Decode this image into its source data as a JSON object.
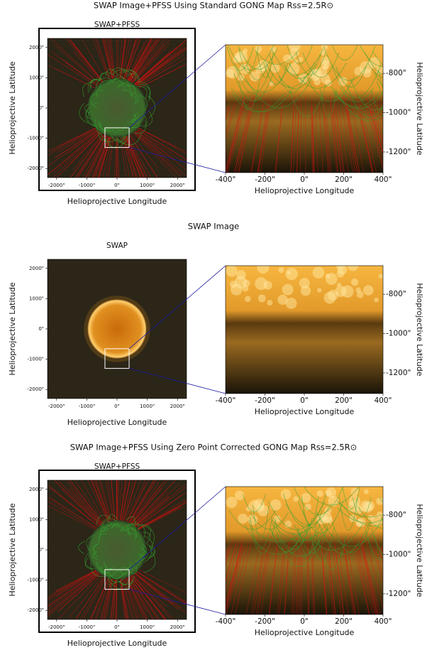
{
  "rows": [
    {
      "title": "SWAP Image+PFSS Using Standard GONG Map Rss=2.5R⊙",
      "pfss_lines": true,
      "overview": {
        "title": "SWAP+PFSS",
        "xlabel": "Helioprojective Longitude",
        "ylabel": "Helioprojective Latitude",
        "xlim": [
          -2300,
          2300
        ],
        "ylim": [
          -2300,
          2300
        ],
        "xticks": [
          {
            "value": -2000,
            "label": "-2000\""
          },
          {
            "value": -1000,
            "label": "-1000\""
          },
          {
            "value": 0,
            "label": "0\""
          },
          {
            "value": 1000,
            "label": "1000\""
          },
          {
            "value": 2000,
            "label": "2000\""
          }
        ],
        "yticks": [
          {
            "value": 2000,
            "label": "2000\""
          },
          {
            "value": 1000,
            "label": "1000\""
          },
          {
            "value": 0,
            "label": "0\""
          },
          {
            "value": -1000,
            "label": "-1000\""
          },
          {
            "value": -2000,
            "label": "-2000\""
          }
        ]
      },
      "zoom": {
        "xlabel": "Helioprojective Longitude",
        "ylabel": "Helioprojective Latitude",
        "xlim": [
          -400,
          400
        ],
        "ylim": [
          -1305,
          -655
        ],
        "xticks": [
          {
            "value": -400,
            "label": "-400\""
          },
          {
            "value": -200,
            "label": "-200\""
          },
          {
            "value": 0,
            "label": "0\""
          },
          {
            "value": 200,
            "label": "200\""
          },
          {
            "value": 400,
            "label": "400\""
          }
        ],
        "yticks": [
          {
            "value": -800,
            "label": "-800\""
          },
          {
            "value": -1000,
            "label": "-1000\""
          },
          {
            "value": -1200,
            "label": "-1200\""
          }
        ]
      }
    },
    {
      "title": "SWAP Image",
      "pfss_lines": false,
      "overview": {
        "title": "SWAP",
        "xlabel": "Helioprojective Longitude",
        "ylabel": "Helioprojective Latitude",
        "xlim": [
          -2300,
          2300
        ],
        "ylim": [
          -2300,
          2300
        ],
        "xticks": [
          {
            "value": -2000,
            "label": "-2000\""
          },
          {
            "value": -1000,
            "label": "-1000\""
          },
          {
            "value": 0,
            "label": "0\""
          },
          {
            "value": 1000,
            "label": "1000\""
          },
          {
            "value": 2000,
            "label": "2000\""
          }
        ],
        "yticks": [
          {
            "value": 2000,
            "label": "2000\""
          },
          {
            "value": 1000,
            "label": "1000\""
          },
          {
            "value": 0,
            "label": "0\""
          },
          {
            "value": -1000,
            "label": "-1000\""
          },
          {
            "value": -2000,
            "label": "-2000\""
          }
        ]
      },
      "zoom": {
        "xlabel": "Helioprojective Longitude",
        "ylabel": "Helioprojective Latitude",
        "xlim": [
          -400,
          400
        ],
        "ylim": [
          -1305,
          -655
        ],
        "xticks": [
          {
            "value": -400,
            "label": "-400\""
          },
          {
            "value": -200,
            "label": "-200\""
          },
          {
            "value": 0,
            "label": "0\""
          },
          {
            "value": 200,
            "label": "200\""
          },
          {
            "value": 400,
            "label": "400\""
          }
        ],
        "yticks": [
          {
            "value": -800,
            "label": "-800\""
          },
          {
            "value": -1000,
            "label": "-1000\""
          },
          {
            "value": -1200,
            "label": "-1200\""
          }
        ]
      }
    },
    {
      "title": "SWAP Image+PFSS Using Zero Point Corrected GONG Map Rss=2.5R⊙",
      "pfss_lines": true,
      "overview": {
        "title": "SWAP+PFSS",
        "xlabel": "Helioprojective Longitude",
        "ylabel": "Helioprojective Latitude",
        "xlim": [
          -2300,
          2300
        ],
        "ylim": [
          -2300,
          2300
        ],
        "xticks": [
          {
            "value": -2000,
            "label": "-2000\""
          },
          {
            "value": -1000,
            "label": "-1000\""
          },
          {
            "value": 0,
            "label": "0\""
          },
          {
            "value": 1000,
            "label": "1000\""
          },
          {
            "value": 2000,
            "label": "2000\""
          }
        ],
        "yticks": [
          {
            "value": 2000,
            "label": "2000\""
          },
          {
            "value": 1000,
            "label": "1000\""
          },
          {
            "value": 0,
            "label": "0\""
          },
          {
            "value": -1000,
            "label": "-1000\""
          },
          {
            "value": -2000,
            "label": "-2000\""
          }
        ]
      },
      "zoom": {
        "xlabel": "Helioprojective Longitude",
        "ylabel": "Helioprojective Latitude",
        "xlim": [
          -400,
          400
        ],
        "ylim": [
          -1305,
          -655
        ],
        "xticks": [
          {
            "value": -400,
            "label": "-400\""
          },
          {
            "value": -200,
            "label": "-200\""
          },
          {
            "value": 0,
            "label": "0\""
          },
          {
            "value": 200,
            "label": "200\""
          },
          {
            "value": 400,
            "label": "400\""
          }
        ],
        "yticks": [
          {
            "value": -800,
            "label": "-800\""
          },
          {
            "value": -1000,
            "label": "-1000\""
          },
          {
            "value": -1200,
            "label": "-1200\""
          }
        ]
      }
    }
  ]
}
